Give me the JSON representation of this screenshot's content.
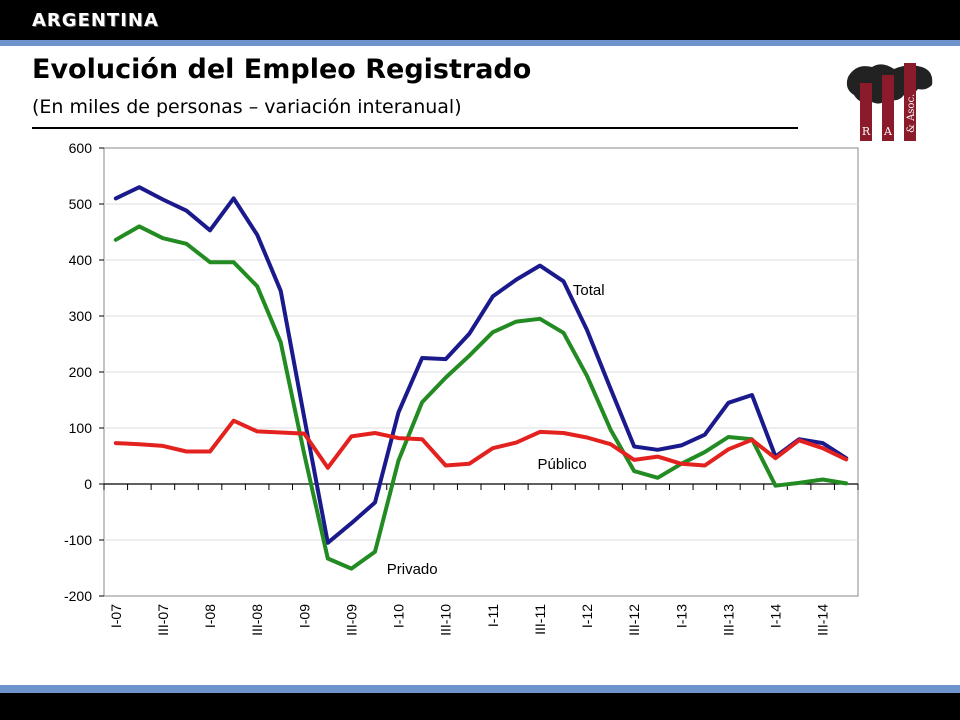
{
  "header": {
    "section": "ARGENTINA",
    "title": "Evolución del Empleo Registrado",
    "subtitle": "(En miles de personas – variación interanual)"
  },
  "logo": {
    "letters": [
      "R",
      "A",
      "& Asoc."
    ]
  },
  "colors": {
    "total": "#1a1a8c",
    "privado": "#228b22",
    "publico": "#e3221f",
    "accent": "#6f93cc"
  },
  "chart_data": {
    "type": "line",
    "title": "Evolución del Empleo Registrado",
    "ylim": [
      -200,
      600
    ],
    "yticks": [
      600,
      500,
      400,
      300,
      200,
      100,
      0,
      -100,
      -200
    ],
    "x": [
      "I-07",
      "II-07",
      "III-07",
      "IV-07",
      "I-08",
      "II-08",
      "III-08",
      "IV-08",
      "I-09",
      "II-09",
      "III-09",
      "IV-09",
      "I-10",
      "II-10",
      "III-10",
      "IV-10",
      "I-11",
      "II-11",
      "III-11",
      "IV-11",
      "I-12",
      "II-12",
      "III-12",
      "IV-12",
      "I-13",
      "II-13",
      "III-13",
      "IV-13",
      "I-14",
      "II-14",
      "III-14",
      "IV-14"
    ],
    "xtick_labels": [
      "I-07",
      "III-07",
      "I-08",
      "III-08",
      "I-09",
      "III-09",
      "I-10",
      "III-10",
      "I-11",
      "III-11",
      "I-12",
      "III-12",
      "I-13",
      "III-13",
      "I-14",
      "III-14"
    ],
    "grid": true,
    "series": [
      {
        "name": "Total",
        "color": "#1a1a8c",
        "values": [
          510,
          530,
          508,
          488,
          453,
          510,
          445,
          345,
          118,
          -105,
          -70,
          -33,
          128,
          225,
          223,
          268,
          335,
          365,
          390,
          362,
          275,
          170,
          67,
          61,
          69,
          88,
          145,
          159,
          49,
          80,
          73,
          46
        ]
      },
      {
        "name": "Privado",
        "color": "#228b22",
        "values": [
          436,
          460,
          439,
          429,
          396,
          396,
          353,
          253,
          53,
          -133,
          -151,
          -121,
          42,
          146,
          190,
          229,
          271,
          290,
          295,
          270,
          193,
          97,
          23,
          11,
          36,
          57,
          84,
          80,
          -3,
          2,
          8,
          1
        ]
      },
      {
        "name": "Público",
        "color": "#e3221f",
        "values": [
          73,
          71,
          68,
          58,
          58,
          113,
          94,
          92,
          90,
          29,
          85,
          91,
          82,
          80,
          33,
          36,
          64,
          74,
          93,
          91,
          83,
          71,
          43,
          49,
          36,
          33,
          62,
          79,
          46,
          78,
          64,
          44
        ]
      }
    ]
  }
}
